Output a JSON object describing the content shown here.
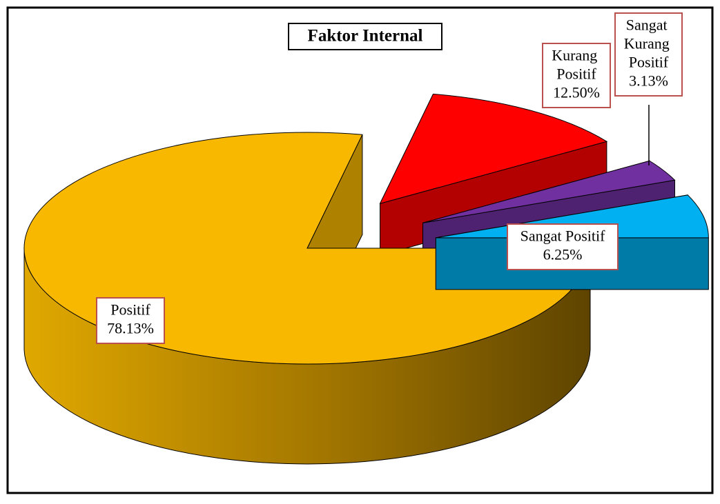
{
  "chart_data": {
    "type": "pie",
    "title": "Faktor Internal",
    "categories": [
      "Positif",
      "Kurang Positif",
      "Sangat Kurang Positif",
      "Sangat Positif"
    ],
    "values": [
      78.13,
      12.5,
      3.13,
      6.25
    ],
    "value_labels": [
      "78.13%",
      "12.50%",
      "3.13%",
      "6.25%"
    ],
    "colors": [
      "#f9b800",
      "#ff0000",
      "#7030a0",
      "#00b0f0"
    ],
    "three_d": true,
    "exploded": [
      false,
      true,
      true,
      true
    ]
  }
}
